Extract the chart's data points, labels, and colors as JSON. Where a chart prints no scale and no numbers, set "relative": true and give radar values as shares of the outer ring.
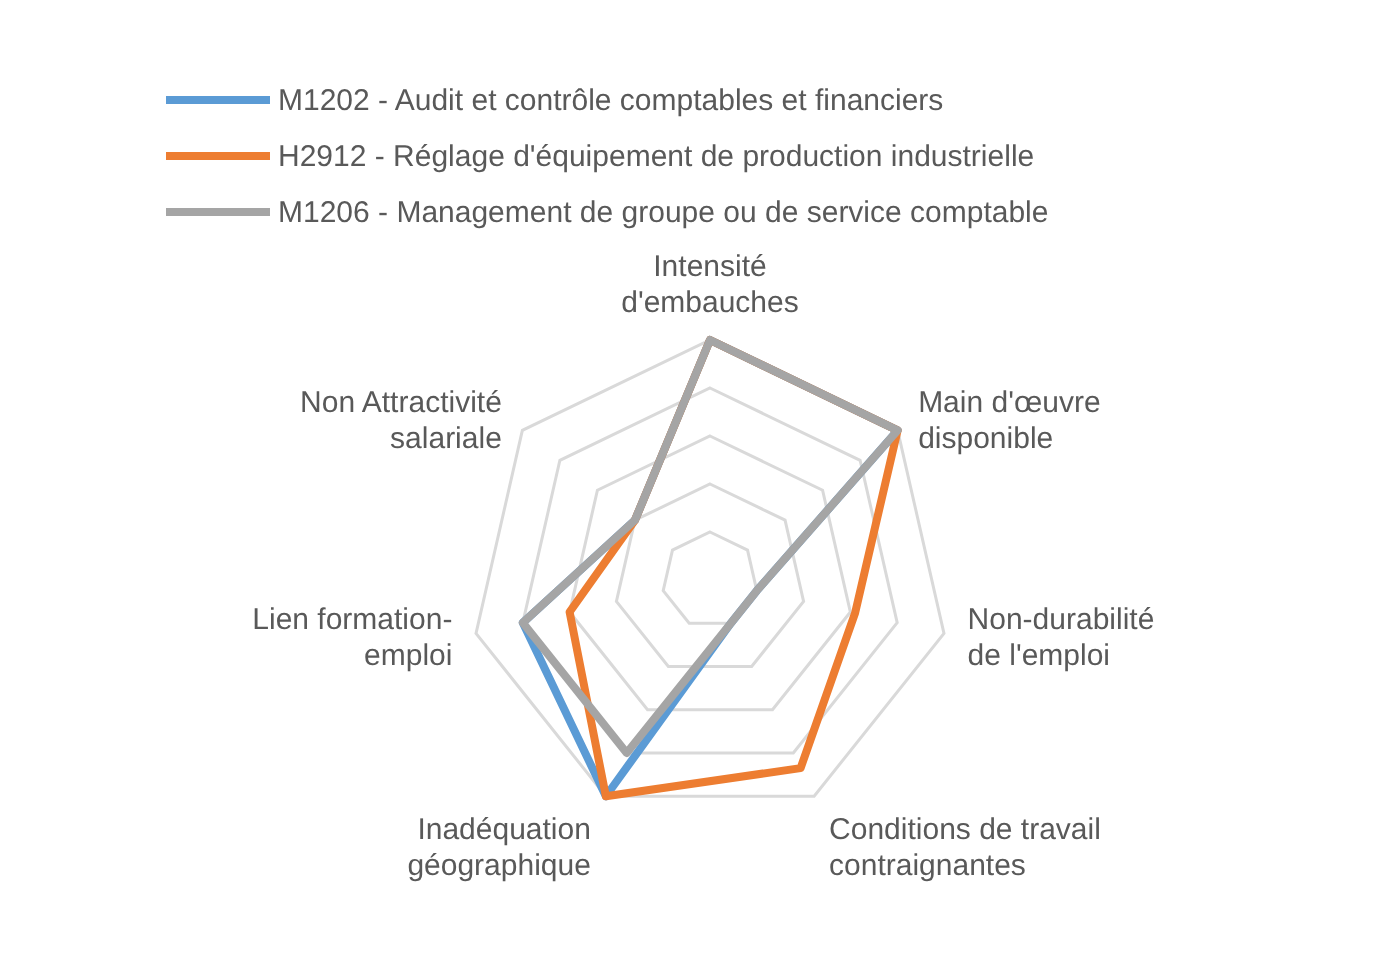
{
  "chart_data": {
    "type": "radar",
    "relative": true,
    "legend": "top",
    "grid": true,
    "categories": [
      "Intensité d'embauches",
      "Main d'œuvre disponible",
      "Non-durabilité de l'emploi",
      "Conditions de travail contraignantes",
      "Inadéquation géographique",
      "Lien formation-emploi",
      "Non Attractivité salariale"
    ],
    "series": [
      {
        "name": "M1202 - Audit et contrôle comptables et financiers",
        "color": "#5b9bd5",
        "values": [
          1,
          1,
          0.2,
          0.2,
          1,
          0.8,
          0.4
        ]
      },
      {
        "name": "H2912 - Réglage d'équipement de production industrielle",
        "color": "#ed7d31",
        "values": [
          1,
          1,
          0.62,
          0.87,
          1,
          0.6,
          0.4
        ]
      },
      {
        "name": "M1206 - Management de groupe ou de service comptable",
        "color": "#a5a5a5",
        "values": [
          1,
          1,
          0.2,
          0.2,
          0.8,
          0.8,
          0.4
        ]
      }
    ]
  }
}
